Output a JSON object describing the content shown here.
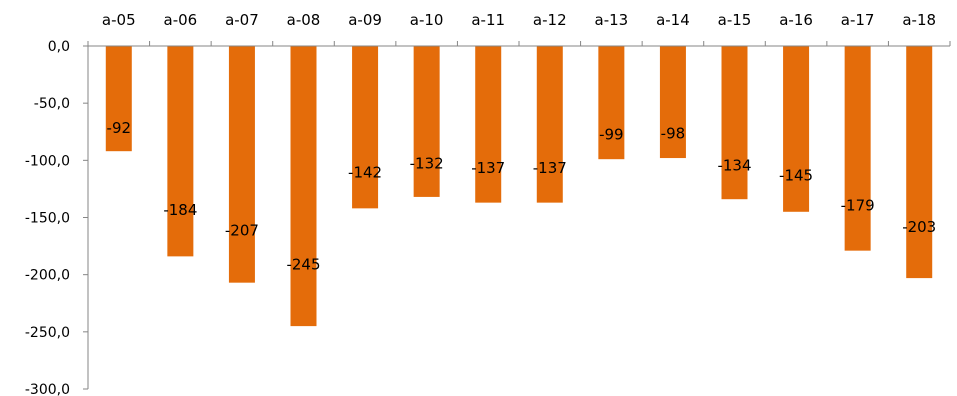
{
  "chart_data": {
    "type": "bar",
    "categories": [
      "a-05",
      "a-06",
      "a-07",
      "a-08",
      "a-09",
      "a-10",
      "a-11",
      "a-12",
      "a-13",
      "a-14",
      "a-15",
      "a-16",
      "a-17",
      "a-18"
    ],
    "values": [
      -92,
      -184,
      -207,
      -245,
      -142,
      -132,
      -137,
      -137,
      -99,
      -98,
      -134,
      -145,
      -179,
      -203
    ],
    "data_labels": [
      "-92",
      "-184",
      "-207",
      "-245",
      "-142",
      "-132",
      "-137",
      "-137",
      "-99",
      "-98",
      "-134",
      "-145",
      "-179",
      "-203"
    ],
    "ylim": [
      -300,
      0
    ],
    "yticks": [
      0,
      -50,
      -100,
      -150,
      -200,
      -250,
      -300
    ],
    "ytick_labels": [
      "0,0",
      "-50,0",
      "-100,0",
      "-150,0",
      "-200,0",
      "-250,0",
      "-300,0"
    ],
    "x_axis_position": "top",
    "grid": false,
    "title": "",
    "xlabel": "",
    "ylabel": "",
    "colors": {
      "bar": "#E46C0A",
      "axis": "#868686",
      "text": "#000000"
    }
  }
}
